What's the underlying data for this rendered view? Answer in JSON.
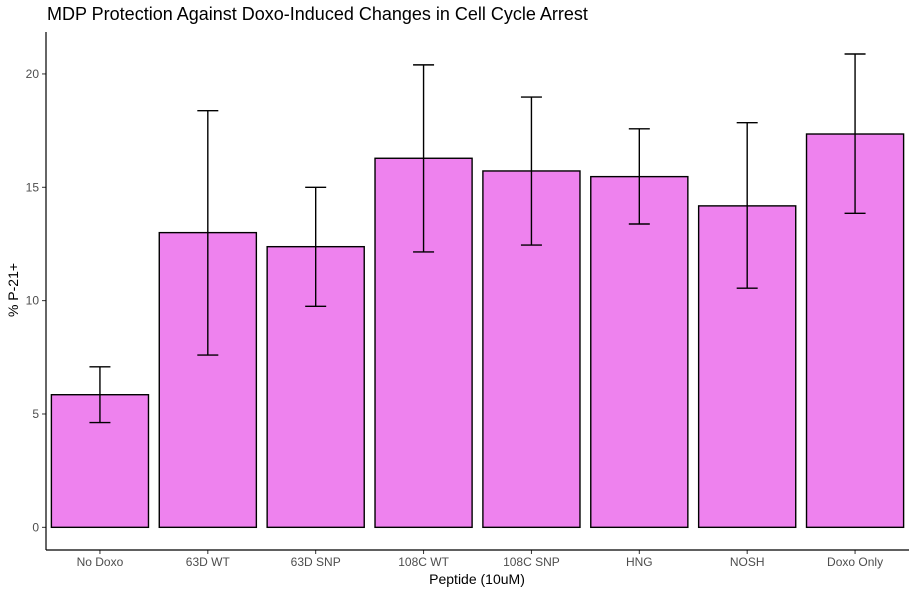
{
  "chart_data": {
    "type": "bar",
    "title": "MDP Protection Against Doxo-Induced Changes in Cell Cycle Arrest",
    "xlabel": "Peptide (10uM)",
    "ylabel": "% P-21+",
    "categories": [
      "No Doxo",
      "63D WT",
      "63D SNP",
      "108C WT",
      "108C SNP",
      "HNG",
      "NOSH",
      "Doxo Only"
    ],
    "values": [
      5.85,
      13.0,
      12.38,
      16.28,
      15.72,
      15.47,
      14.18,
      17.35
    ],
    "error_low": [
      4.62,
      7.6,
      9.75,
      12.15,
      12.45,
      13.38,
      10.55,
      13.85
    ],
    "error_high": [
      7.08,
      18.38,
      15.0,
      20.4,
      18.98,
      17.58,
      17.85,
      20.88
    ],
    "ylim": [
      -1.0,
      21.85
    ],
    "yticks": [
      0,
      5,
      10,
      15,
      20
    ],
    "bar_color": "#ee82ee",
    "bar_edge_color": "#000000",
    "grid": false,
    "legend": "none"
  }
}
